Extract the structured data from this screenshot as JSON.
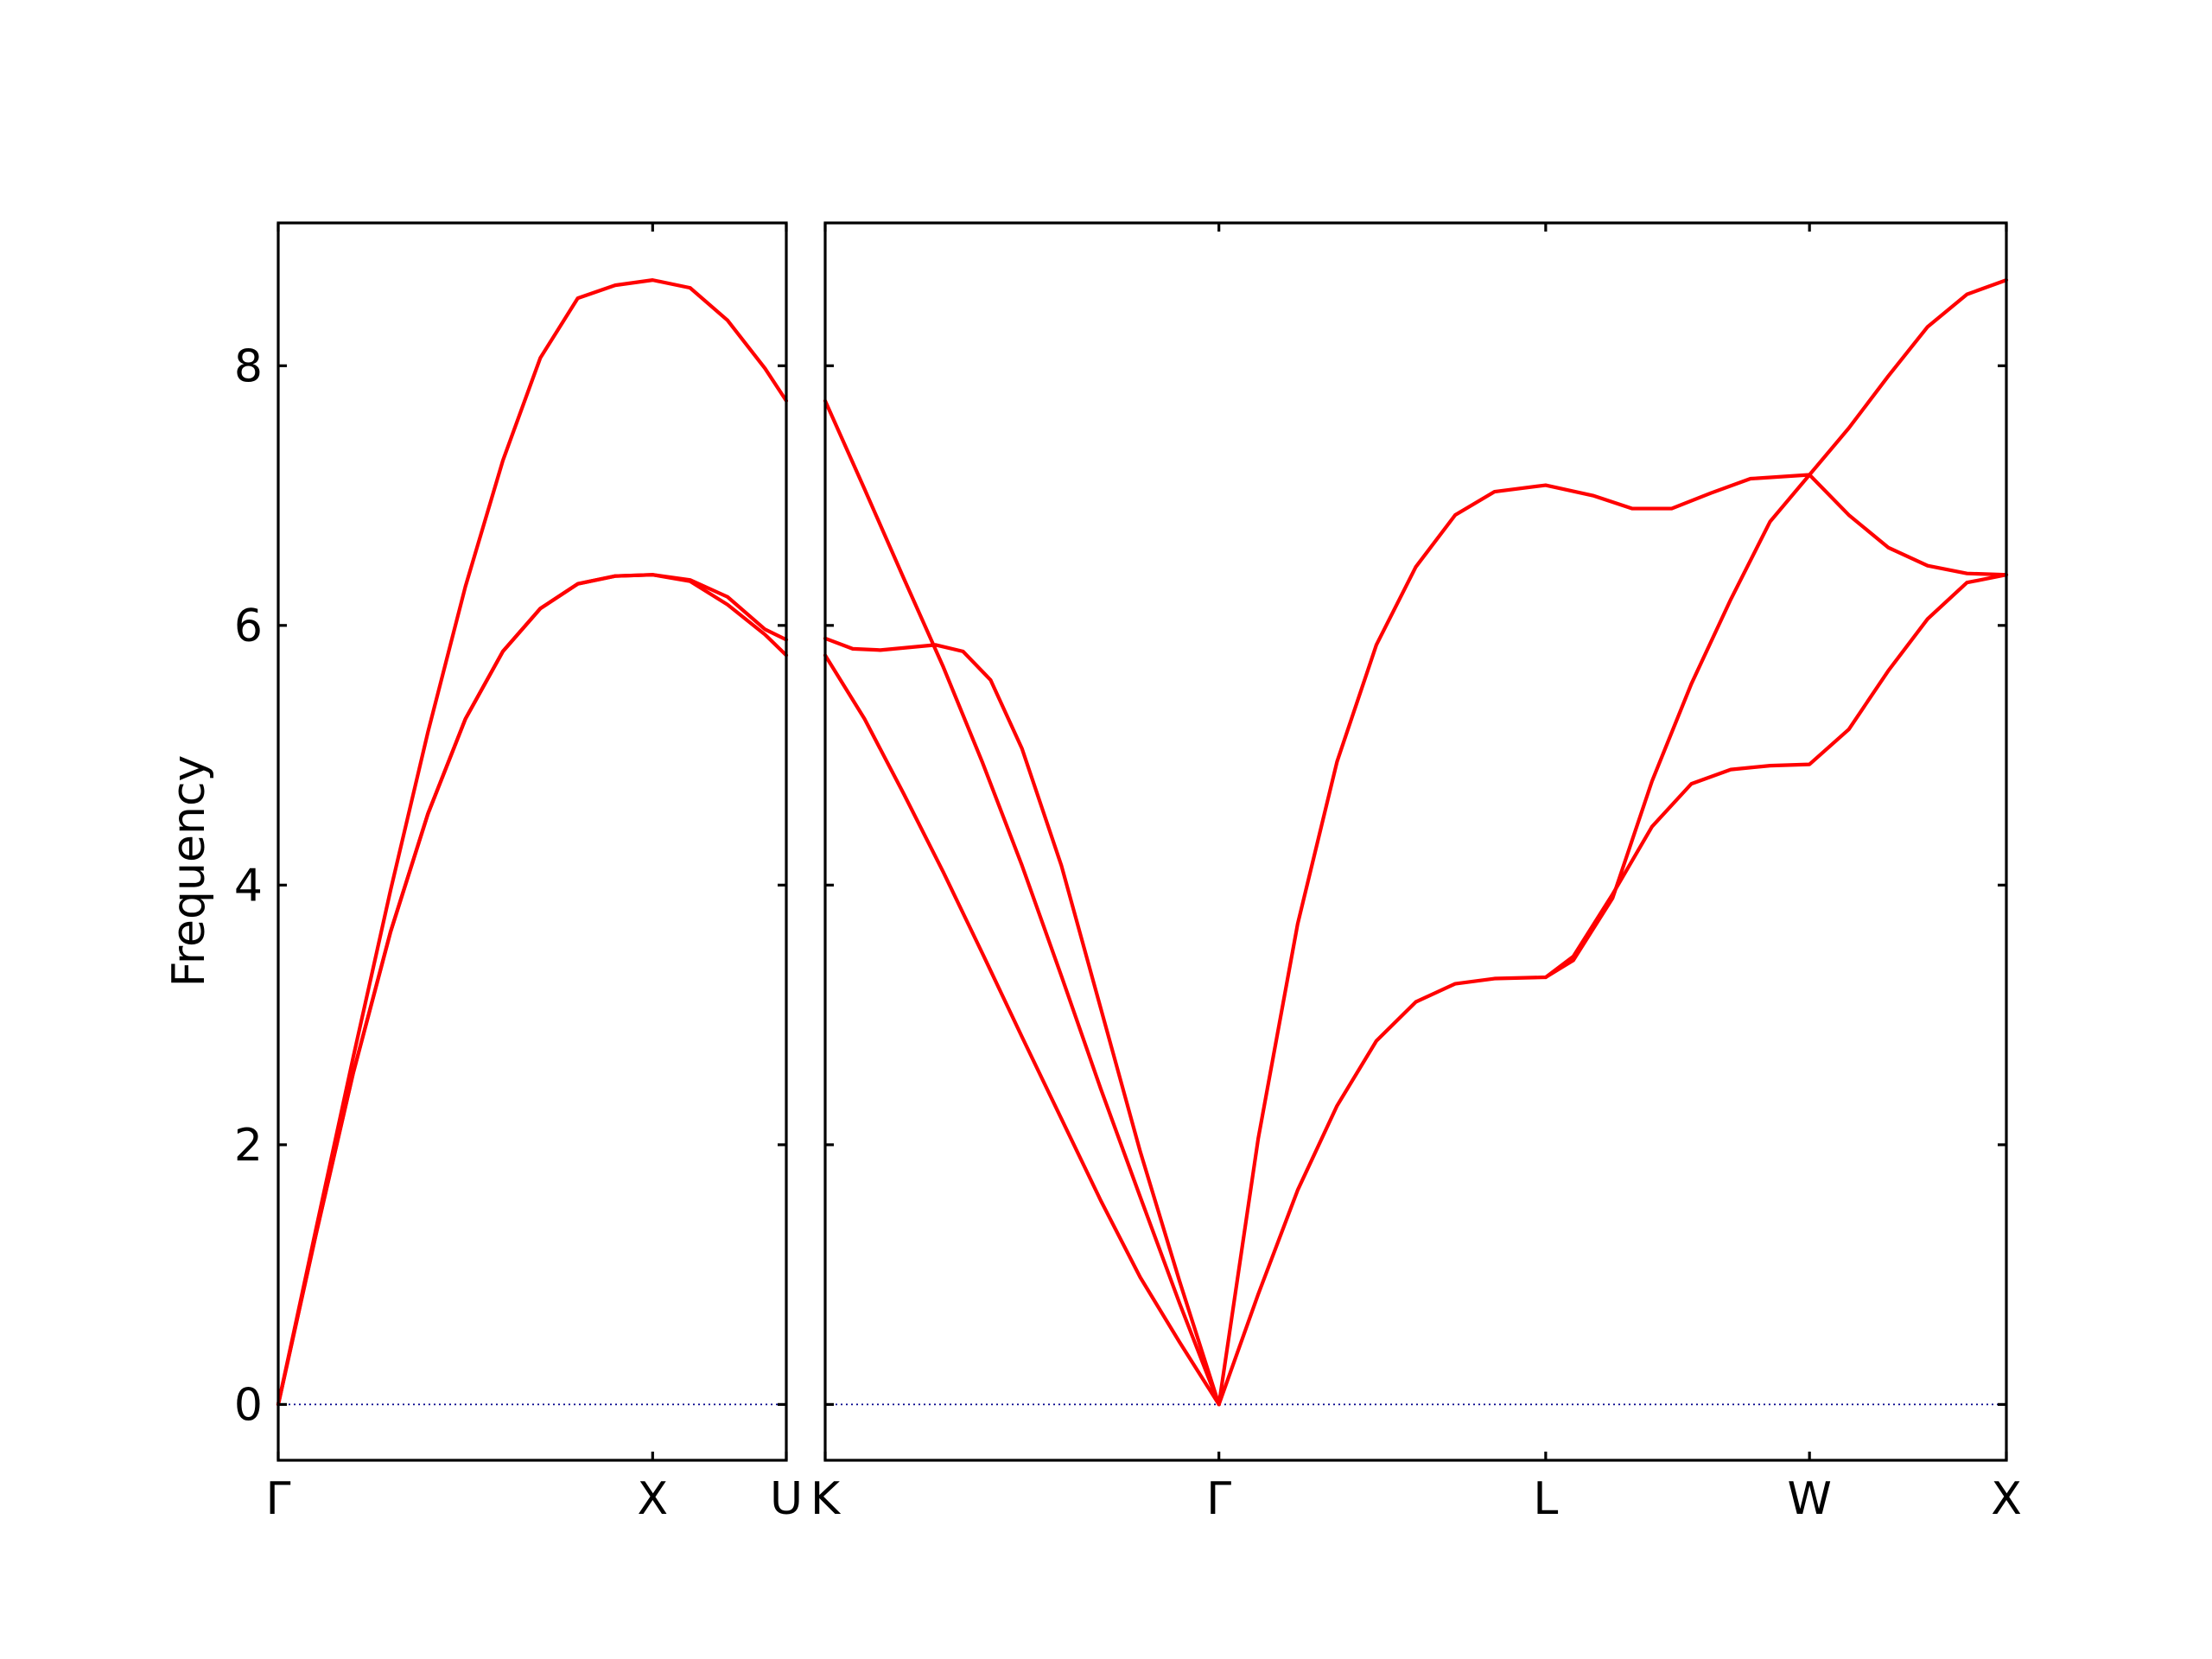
{
  "chart_data": [
    {
      "type": "line",
      "panel": "left",
      "ylabel": "Frequency",
      "ylim": [
        -0.43,
        9.1
      ],
      "yticks": [
        0,
        2,
        4,
        6,
        8
      ],
      "xlim": [
        0,
        1.357
      ],
      "xticks": [
        {
          "pos": 0.0,
          "label": "Γ"
        },
        {
          "pos": 1.0,
          "label": "X"
        },
        {
          "pos": 1.357,
          "label": "U"
        }
      ],
      "line_color": "#ff0000",
      "zero_line_color": "#00008b",
      "grid": false,
      "series": [
        {
          "x": [
            0,
            0.1,
            0.2,
            0.3,
            0.4,
            0.5,
            0.6,
            0.7,
            0.8,
            0.9,
            1.0,
            1.1,
            1.2,
            1.3,
            1.357
          ],
          "y": [
            0,
            1.34,
            2.67,
            3.96,
            5.18,
            6.3,
            7.27,
            8.06,
            8.52,
            8.62,
            8.66,
            8.6,
            8.35,
            7.98,
            7.73
          ]
        },
        {
          "x": [
            0,
            0.1,
            0.2,
            0.3,
            0.4,
            0.5,
            0.6,
            0.7,
            0.8,
            0.9,
            1.0,
            1.1,
            1.2,
            1.3,
            1.357
          ],
          "y": [
            0,
            1.3,
            2.55,
            3.64,
            4.55,
            5.28,
            5.8,
            6.13,
            6.32,
            6.38,
            6.39,
            6.35,
            6.22,
            5.97,
            5.89
          ]
        },
        {
          "x": [
            0,
            0.1,
            0.2,
            0.3,
            0.4,
            0.5,
            0.6,
            0.7,
            0.8,
            0.9,
            1.0,
            1.1,
            1.2,
            1.3,
            1.357
          ],
          "y": [
            0,
            1.3,
            2.55,
            3.64,
            4.55,
            5.28,
            5.8,
            6.13,
            6.32,
            6.38,
            6.39,
            6.34,
            6.16,
            5.93,
            5.77
          ]
        }
      ]
    },
    {
      "type": "line",
      "panel": "right",
      "ylim": [
        -0.43,
        9.1
      ],
      "yticks": [
        0,
        2,
        4,
        6,
        8
      ],
      "xlim": [
        0,
        3.0
      ],
      "xticks": [
        {
          "pos": 0.0,
          "label": "K"
        },
        {
          "pos": 1.0,
          "label": "Γ"
        },
        {
          "pos": 1.83,
          "label": "L"
        },
        {
          "pos": 2.5,
          "label": "W"
        },
        {
          "pos": 3.0,
          "label": "X"
        }
      ],
      "line_color": "#ff0000",
      "zero_line_color": "#00008b",
      "grid": false,
      "series": [
        {
          "x": [
            0,
            0.1,
            0.2,
            0.3,
            0.4,
            0.5,
            0.6,
            0.7,
            0.8,
            0.9,
            1.0
          ],
          "y": [
            7.73,
            7.05,
            6.36,
            5.68,
            4.94,
            4.15,
            3.3,
            2.43,
            1.6,
            0.78,
            0
          ]
        },
        {
          "x": [
            0,
            0.07,
            0.14,
            0.21,
            0.28,
            0.35,
            0.42,
            0.5,
            0.6,
            0.7,
            0.8,
            0.9,
            1.0
          ],
          "y": [
            5.9,
            5.82,
            5.81,
            5.83,
            5.85,
            5.8,
            5.58,
            5.05,
            4.15,
            3.05,
            1.95,
            0.95,
            0
          ]
        },
        {
          "x": [
            0,
            0.1,
            0.2,
            0.3,
            0.4,
            0.5,
            0.6,
            0.7,
            0.8,
            0.9,
            1.0
          ],
          "y": [
            5.77,
            5.28,
            4.7,
            4.1,
            3.47,
            2.83,
            2.2,
            1.57,
            0.98,
            0.48,
            0
          ]
        },
        {
          "x": [
            1.0,
            1.1,
            1.2,
            1.3,
            1.4,
            1.5,
            1.6,
            1.7,
            1.83,
            1.95,
            2.05,
            2.15,
            2.25,
            2.35,
            2.5,
            2.6,
            2.7,
            2.8,
            2.9,
            3.0
          ],
          "y": [
            0,
            2.05,
            3.7,
            4.95,
            5.85,
            6.45,
            6.85,
            7.03,
            7.08,
            7.0,
            6.9,
            6.9,
            7.02,
            7.13,
            7.16,
            7.52,
            7.92,
            8.3,
            8.55,
            8.66
          ]
        },
        {
          "x": [
            1.0,
            1.1,
            1.2,
            1.3,
            1.4,
            1.5,
            1.6,
            1.7,
            1.83,
            1.9,
            2.0,
            2.1,
            2.2,
            2.3,
            2.4,
            2.5,
            2.6,
            2.7,
            2.8,
            2.9,
            3.0
          ],
          "y": [
            0,
            0.85,
            1.65,
            2.3,
            2.8,
            3.1,
            3.24,
            3.28,
            3.29,
            3.42,
            3.9,
            4.8,
            5.55,
            6.2,
            6.8,
            7.16,
            6.85,
            6.6,
            6.46,
            6.4,
            6.39
          ]
        },
        {
          "x": [
            1.83,
            1.9,
            2.0,
            2.1,
            2.2,
            2.3,
            2.4,
            2.5,
            2.6,
            2.7,
            2.8,
            2.9,
            3.0
          ],
          "y": [
            3.29,
            3.45,
            3.93,
            4.45,
            4.78,
            4.89,
            4.92,
            4.93,
            5.2,
            5.65,
            6.05,
            6.33,
            6.39
          ]
        }
      ]
    }
  ]
}
